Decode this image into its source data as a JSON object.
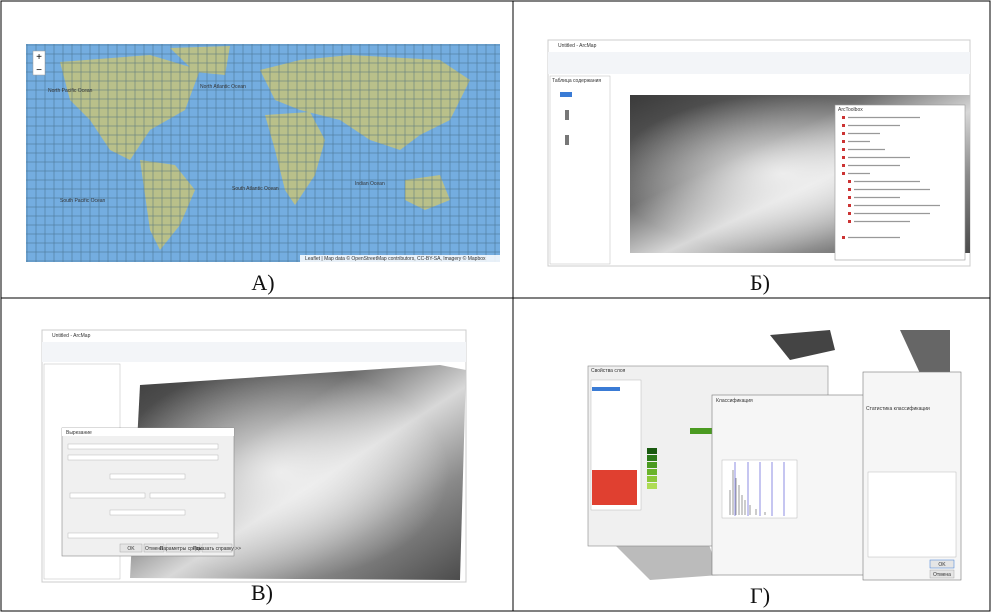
{
  "panels": [
    {
      "label": "А)",
      "map": {
        "oceans": [
          "North Pacific Ocean",
          "North Atlantic Ocean",
          "South Atlantic Ocean",
          "Indian Ocean",
          "South Pacific Ocean"
        ],
        "attribution": "Leaflet | Map data © OpenStreetMap contributors, CC-BY-SA, Imagery © Mapbox"
      }
    },
    {
      "label": "Б)",
      "window_title": "Untitled - ArcMap",
      "toc_title": "Таблица содержания",
      "toolbox_title": "ArcToolbox"
    },
    {
      "label": "В)",
      "window_title": "Untitled - ArcMap",
      "dialog_title": "Вырезание",
      "buttons": [
        "OK",
        "Отмена",
        "Параметры среды...",
        "Показать справку >>"
      ]
    },
    {
      "label": "Г)",
      "dialog_title": "Свойства слоя",
      "classification_title": "Классификация",
      "stats_title": "Статистика классификации",
      "buttons": [
        "OK",
        "Отмена"
      ]
    }
  ]
}
